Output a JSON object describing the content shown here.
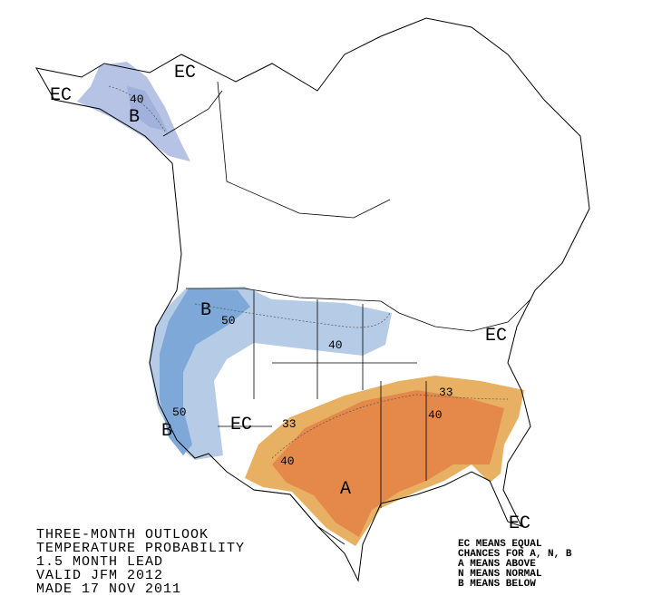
{
  "map": {
    "title_lines": [
      "THREE-MONTH OUTLOOK",
      "TEMPERATURE PROBABILITY",
      "1.5 MONTH LEAD",
      "VALID JFM 2012",
      "MADE 17 NOV 2011"
    ],
    "legend_lines": [
      "EC MEANS EQUAL",
      "CHANCES FOR A, N, B",
      "A MEANS ABOVE",
      "N MEANS NORMAL",
      "B MEANS BELOW"
    ],
    "labels": [
      "EC",
      "EC",
      "40",
      "B",
      "B",
      "50",
      "40",
      "EC",
      "50",
      "B",
      "EC",
      "33",
      "40",
      "A",
      "33",
      "40",
      "EC"
    ]
  }
}
